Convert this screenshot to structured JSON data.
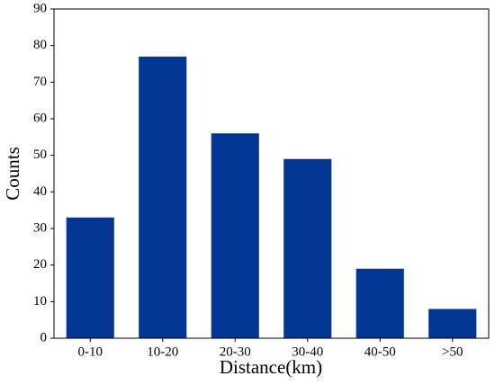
{
  "chart_data": {
    "type": "bar",
    "x_label": "Distance(km)",
    "y_label": "Counts",
    "categories": [
      "0-10",
      "10-20",
      "20-30",
      "30-40",
      "40-50",
      ">50"
    ],
    "values": [
      33,
      77,
      56,
      49,
      19,
      8
    ],
    "color": "#043694",
    "ylim": [
      0,
      90
    ],
    "yticks": [
      0,
      10,
      20,
      30,
      40,
      50,
      60,
      70,
      80,
      90
    ],
    "grid": false
  }
}
